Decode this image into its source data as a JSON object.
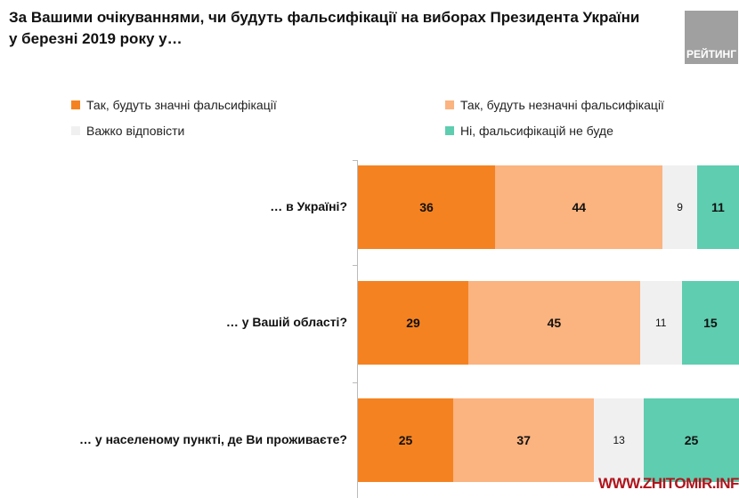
{
  "chart_data": {
    "type": "bar",
    "orientation": "horizontal-stacked-100",
    "title": "За Вашими очікуваннями, чи будуть фальсифікації на виборах Президента України у березні 2019 року у…",
    "categories": [
      "… в Україні?",
      "… у Вашій області?",
      "… у населеному пункті, де Ви проживаєте?"
    ],
    "series": [
      {
        "name": "Так, будуть значні фальсифікації",
        "color": "#F58220",
        "values": [
          36,
          29,
          25
        ]
      },
      {
        "name": "Так, будуть незначні фальсифікації",
        "color": "#FBB37F",
        "values": [
          44,
          45,
          37
        ]
      },
      {
        "name": "Важко відповісти",
        "color": "#F0F0F0",
        "values": [
          9,
          11,
          13
        ]
      },
      {
        "name": "Ні, фальсифікацій не буде",
        "color": "#5ECDB0",
        "values": [
          11,
          15,
          25
        ]
      }
    ],
    "xlim": [
      0,
      100
    ],
    "legend_position": "top"
  },
  "logo_text": "РЕЙТИНГ",
  "watermark": "WWW.ZHITOMIR.INFO"
}
